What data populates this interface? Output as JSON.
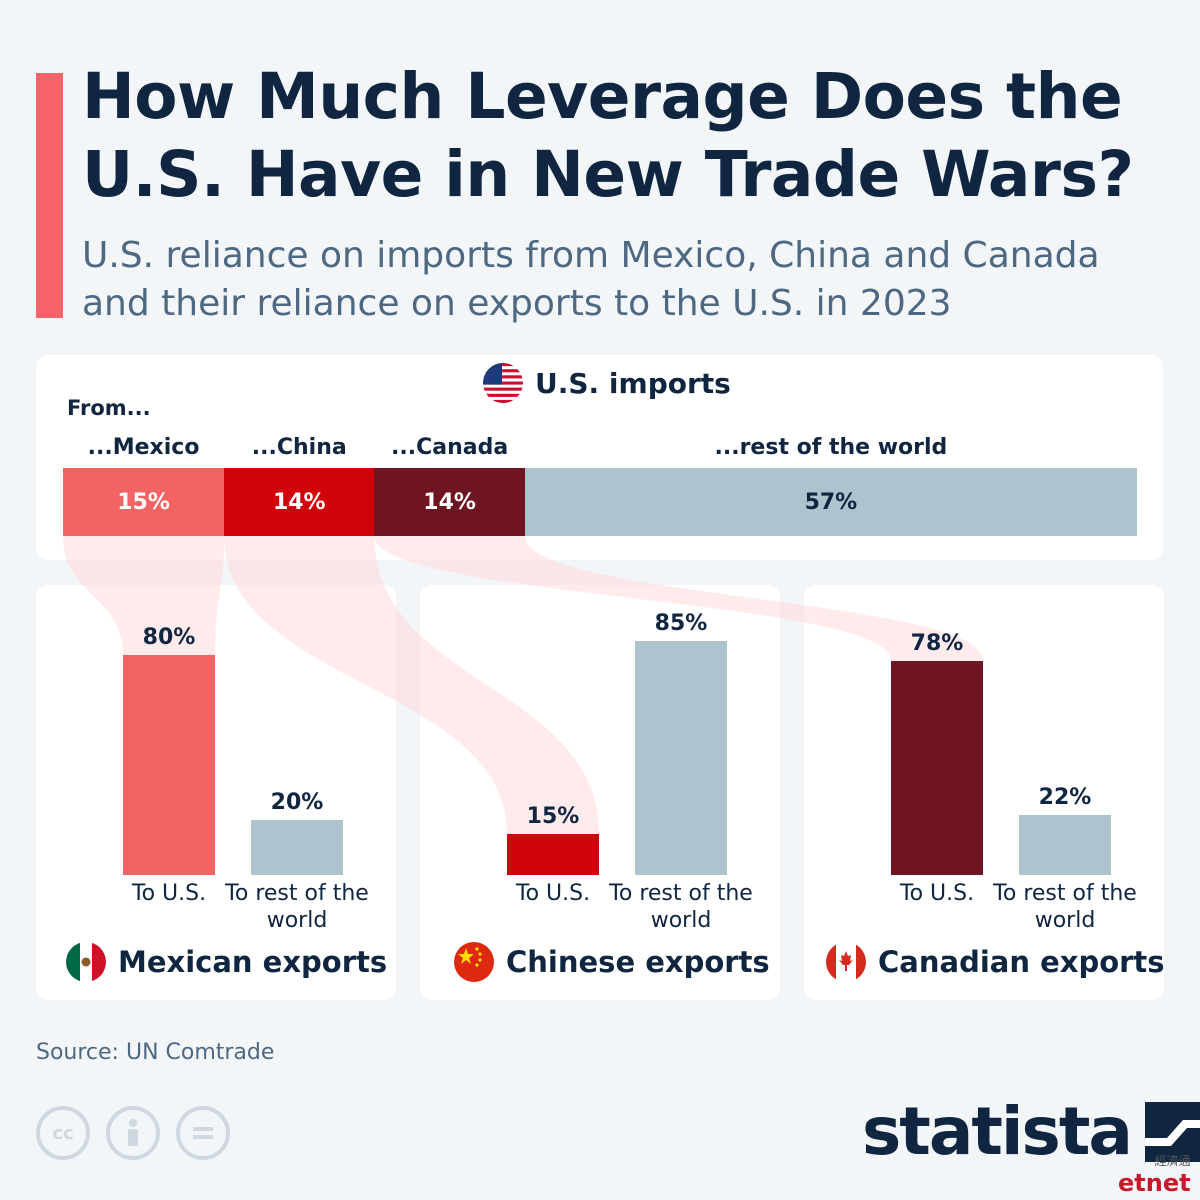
{
  "header": {
    "title": "How Much Leverage Does the U.S. Have in New Trade Wars?",
    "subtitle": "U.S. reliance on imports from Mexico, China and Canada and their reliance on exports to the U.S. in 2023"
  },
  "colors": {
    "accent": "#f6636a",
    "mexico": "#f46363",
    "china": "#d0020a",
    "canada": "#6e1521",
    "rest": "#adc4cf",
    "text": "#0f2540",
    "flow": "#ffd9dc"
  },
  "chart_data": [
    {
      "type": "bar",
      "orientation": "stacked-horizontal",
      "title": "U.S. imports",
      "from_label": "From...",
      "categories": [
        "...Mexico",
        "...China",
        "...Canada",
        "...rest of the world"
      ],
      "values": [
        15,
        14,
        14,
        57
      ],
      "value_labels": [
        "15%",
        "14%",
        "14%",
        "57%"
      ],
      "unit": "%",
      "icon": "us-flag-icon"
    },
    {
      "type": "bar",
      "title": "Mexican exports",
      "categories": [
        "To U.S.",
        "To rest of the world"
      ],
      "values": [
        80,
        20
      ],
      "value_labels": [
        "80%",
        "20%"
      ],
      "unit": "%",
      "ylim": [
        0,
        100
      ],
      "icon": "mexico-flag-icon"
    },
    {
      "type": "bar",
      "title": "Chinese exports",
      "categories": [
        "To U.S.",
        "To rest of the world"
      ],
      "values": [
        15,
        85
      ],
      "value_labels": [
        "15%",
        "85%"
      ],
      "unit": "%",
      "ylim": [
        0,
        100
      ],
      "icon": "china-flag-icon"
    },
    {
      "type": "bar",
      "title": "Canadian exports",
      "categories": [
        "To U.S.",
        "To rest of the world"
      ],
      "values": [
        78,
        22
      ],
      "value_labels": [
        "78%",
        "22%"
      ],
      "unit": "%",
      "ylim": [
        0,
        100
      ],
      "icon": "canada-flag-icon"
    }
  ],
  "footer": {
    "source": "Source: UN Comtrade",
    "brand": "statista",
    "cc_icons": [
      "creative-commons-icon",
      "attribution-icon",
      "no-derivatives-icon"
    ],
    "watermark_cn": "經濟通",
    "watermark": "etnet"
  }
}
